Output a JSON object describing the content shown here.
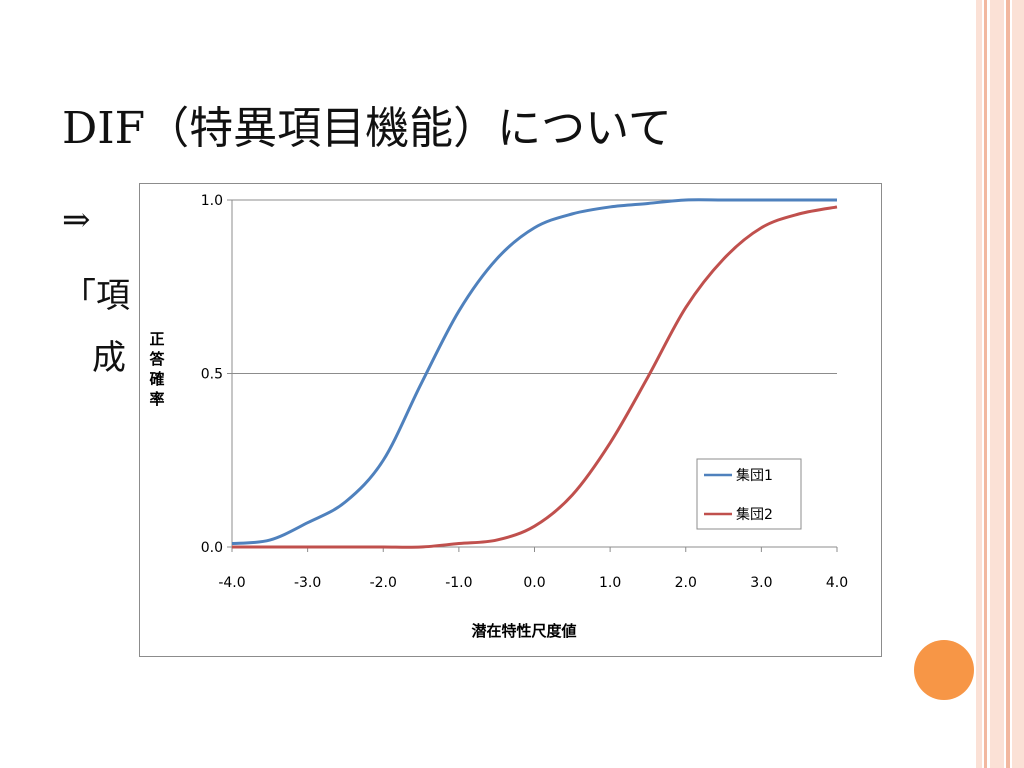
{
  "slide": {
    "title": "DIF（特異項目機能）について",
    "arrow": "⇒",
    "line2_visible": "「項",
    "line3_visible": "成"
  },
  "decor": {
    "stripe_color": "#f2b8a0",
    "stripe_light": "#fbe1d6",
    "circle_color": "#f79646"
  },
  "chart_data": {
    "type": "line",
    "title": "",
    "xlabel": "潜在特性尺度値",
    "ylabel": "正答確率",
    "xlim": [
      -4.0,
      4.0
    ],
    "ylim": [
      0.0,
      1.0
    ],
    "x_ticks": [
      "-4.0",
      "-3.0",
      "-2.0",
      "-1.0",
      "0.0",
      "1.0",
      "2.0",
      "3.0",
      "4.0"
    ],
    "y_ticks": [
      "0.0",
      "0.5",
      "1.0"
    ],
    "grid": "horizontal",
    "legend_position": "bottom-right",
    "x": [
      -4.0,
      -3.5,
      -3.0,
      -2.5,
      -2.0,
      -1.5,
      -1.0,
      -0.5,
      0.0,
      0.5,
      1.0,
      1.5,
      2.0,
      2.5,
      3.0,
      3.5,
      4.0
    ],
    "series": [
      {
        "name": "集団1",
        "color": "#4f81bd",
        "values": [
          0.01,
          0.02,
          0.07,
          0.13,
          0.25,
          0.47,
          0.68,
          0.83,
          0.92,
          0.96,
          0.98,
          0.99,
          1.0,
          1.0,
          1.0,
          1.0,
          1.0
        ]
      },
      {
        "name": "集団2",
        "color": "#c0504d",
        "values": [
          0.0,
          0.0,
          0.0,
          0.0,
          0.0,
          0.0,
          0.01,
          0.02,
          0.06,
          0.15,
          0.3,
          0.49,
          0.69,
          0.83,
          0.92,
          0.96,
          0.98
        ]
      }
    ]
  }
}
